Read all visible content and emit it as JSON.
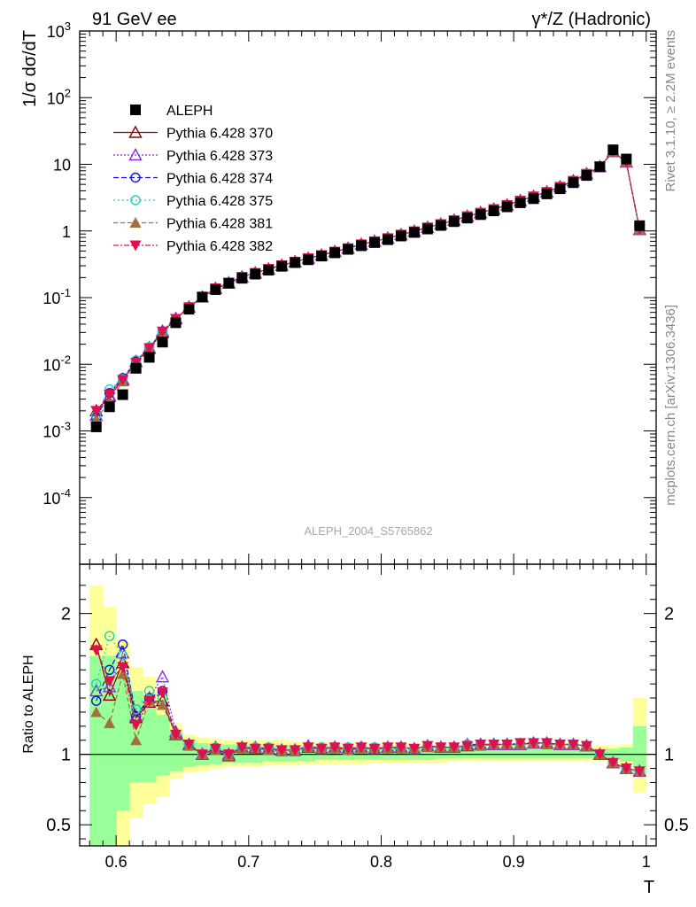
{
  "header": {
    "left_title": "91 GeV ee",
    "right_title": "γ*/Z (Hadronic)"
  },
  "side_text": {
    "rivet": "Rivet 3.1.10, ≥ 2.2M events",
    "mcplots": "mcplots.cern.ch [arXiv:1306.3436]"
  },
  "watermark": "ALEPH_2004_S5765862",
  "colors": {
    "data": "#000000",
    "p370": "#8b0000",
    "p373": "#8a2be2",
    "p374": "#1515d0",
    "p375": "#20d0c0",
    "p381": "#a07040",
    "p382": "#e0104c",
    "band_green": "#99ff99",
    "band_yellow": "#ffff99"
  },
  "chart_data": [
    {
      "type": "scatter",
      "panel": "main",
      "ylabel": "1/σ  dσ/dT",
      "yscale": "log",
      "xlim": [
        0.5725,
        1.0075
      ],
      "ylim": [
        1e-05,
        1000
      ],
      "x_ticks": [
        "0.6",
        "0.7",
        "0.8",
        "0.9",
        "1"
      ],
      "y_tick_labels": [
        "10^-4",
        "10^-3",
        "10^-2",
        "10^-1",
        "1",
        "10",
        "10^2",
        "10^3"
      ],
      "legend_position": "top-left",
      "x": [
        0.585,
        0.595,
        0.605,
        0.615,
        0.625,
        0.635,
        0.645,
        0.655,
        0.665,
        0.675,
        0.685,
        0.695,
        0.705,
        0.715,
        0.725,
        0.735,
        0.745,
        0.755,
        0.765,
        0.775,
        0.785,
        0.795,
        0.805,
        0.815,
        0.825,
        0.835,
        0.845,
        0.855,
        0.865,
        0.875,
        0.885,
        0.895,
        0.905,
        0.915,
        0.925,
        0.935,
        0.945,
        0.955,
        0.965,
        0.975,
        0.985,
        0.995
      ],
      "series": [
        {
          "name": "ALEPH",
          "marker": "square",
          "values": [
            0.00115,
            0.0023,
            0.0035,
            0.0087,
            0.0127,
            0.0215,
            0.042,
            0.067,
            0.102,
            0.132,
            0.165,
            0.195,
            0.225,
            0.258,
            0.295,
            0.335,
            0.37,
            0.42,
            0.47,
            0.53,
            0.6,
            0.67,
            0.74,
            0.84,
            0.95,
            1.07,
            1.21,
            1.38,
            1.56,
            1.76,
            2.0,
            2.3,
            2.65,
            3.05,
            3.6,
            4.3,
            5.3,
            6.8,
            9.2,
            16.5,
            12.0,
            1.2
          ]
        },
        {
          "name": "Pythia 6.428 370",
          "marker": "triangle-open",
          "values": [
            0.002,
            0.0033,
            0.0058,
            0.011,
            0.0173,
            0.03,
            0.048,
            0.072,
            0.102,
            0.138,
            0.165,
            0.205,
            0.235,
            0.27,
            0.305,
            0.345,
            0.39,
            0.435,
            0.49,
            0.55,
            0.63,
            0.7,
            0.78,
            0.88,
            0.99,
            1.13,
            1.27,
            1.45,
            1.66,
            1.88,
            2.13,
            2.45,
            2.85,
            3.3,
            3.85,
            4.6,
            5.65,
            7.2,
            9.2,
            15.5,
            10.8,
            1.05
          ]
        },
        {
          "name": "Pythia 6.428 373",
          "marker": "triangle-open",
          "values": [
            0.0017,
            0.0034,
            0.006,
            0.011,
            0.0178,
            0.0315,
            0.049,
            0.072,
            0.102,
            0.137,
            0.167,
            0.205,
            0.235,
            0.268,
            0.305,
            0.345,
            0.39,
            0.435,
            0.49,
            0.55,
            0.63,
            0.7,
            0.78,
            0.88,
            0.99,
            1.13,
            1.27,
            1.45,
            1.66,
            1.88,
            2.13,
            2.45,
            2.85,
            3.3,
            3.85,
            4.6,
            5.65,
            7.2,
            9.2,
            15.5,
            10.8,
            1.05
          ]
        },
        {
          "name": "Pythia 6.428 374",
          "marker": "circle-open",
          "values": [
            0.0016,
            0.0037,
            0.0062,
            0.011,
            0.0178,
            0.031,
            0.048,
            0.072,
            0.102,
            0.137,
            0.165,
            0.205,
            0.235,
            0.268,
            0.305,
            0.345,
            0.39,
            0.435,
            0.49,
            0.55,
            0.63,
            0.7,
            0.78,
            0.88,
            0.99,
            1.13,
            1.27,
            1.45,
            1.66,
            1.88,
            2.13,
            2.45,
            2.85,
            3.3,
            3.85,
            4.6,
            5.65,
            7.2,
            9.2,
            15.5,
            10.8,
            1.05
          ]
        },
        {
          "name": "Pythia 6.428 375",
          "marker": "circle-open",
          "values": [
            0.0017,
            0.0042,
            0.006,
            0.0115,
            0.0182,
            0.03,
            0.048,
            0.072,
            0.102,
            0.138,
            0.165,
            0.205,
            0.235,
            0.268,
            0.305,
            0.345,
            0.39,
            0.435,
            0.49,
            0.55,
            0.63,
            0.7,
            0.78,
            0.88,
            0.99,
            1.13,
            1.27,
            1.45,
            1.66,
            1.88,
            2.13,
            2.45,
            2.85,
            3.3,
            3.85,
            4.6,
            5.65,
            7.2,
            9.2,
            15.5,
            10.8,
            1.05
          ]
        },
        {
          "name": "Pythia 6.428 381",
          "marker": "triangle-filled",
          "values": [
            0.0015,
            0.0028,
            0.0055,
            0.0095,
            0.0175,
            0.029,
            0.048,
            0.071,
            0.101,
            0.136,
            0.165,
            0.205,
            0.235,
            0.268,
            0.305,
            0.345,
            0.39,
            0.435,
            0.49,
            0.55,
            0.63,
            0.7,
            0.78,
            0.88,
            0.99,
            1.13,
            1.27,
            1.45,
            1.66,
            1.88,
            2.13,
            2.45,
            2.85,
            3.3,
            3.85,
            4.6,
            5.65,
            7.2,
            9.2,
            15.5,
            10.8,
            1.05
          ]
        },
        {
          "name": "Pythia 6.428 382",
          "marker": "triangle-down-filled",
          "values": [
            0.002,
            0.0035,
            0.0058,
            0.0105,
            0.0175,
            0.031,
            0.048,
            0.072,
            0.102,
            0.138,
            0.166,
            0.205,
            0.235,
            0.27,
            0.305,
            0.345,
            0.39,
            0.435,
            0.49,
            0.55,
            0.63,
            0.7,
            0.78,
            0.88,
            0.99,
            1.13,
            1.27,
            1.45,
            1.66,
            1.88,
            2.13,
            2.45,
            2.85,
            3.3,
            3.85,
            4.6,
            5.65,
            7.2,
            9.2,
            15.5,
            10.8,
            1.05
          ]
        }
      ]
    },
    {
      "type": "line",
      "panel": "ratio",
      "ylabel": "Ratio to ALEPH",
      "xlabel": "T",
      "xlim": [
        0.5725,
        1.0075
      ],
      "ylim": [
        0.35,
        2.35
      ],
      "y_ticks": [
        "0.5",
        "1",
        "2"
      ],
      "x": [
        0.585,
        0.595,
        0.605,
        0.615,
        0.625,
        0.635,
        0.645,
        0.655,
        0.665,
        0.675,
        0.685,
        0.695,
        0.705,
        0.715,
        0.725,
        0.735,
        0.745,
        0.755,
        0.765,
        0.775,
        0.785,
        0.795,
        0.805,
        0.815,
        0.825,
        0.835,
        0.845,
        0.855,
        0.865,
        0.875,
        0.885,
        0.895,
        0.905,
        0.915,
        0.925,
        0.935,
        0.945,
        0.955,
        0.965,
        0.975,
        0.985,
        0.995
      ],
      "band_green": [
        [
          0.3,
          1.7
        ],
        [
          0.3,
          1.7
        ],
        [
          0.6,
          1.55
        ],
        [
          0.8,
          1.45
        ],
        [
          0.8,
          1.35
        ],
        [
          0.85,
          1.28
        ],
        [
          0.88,
          1.17
        ],
        [
          0.91,
          1.1
        ],
        [
          0.92,
          1.08
        ],
        [
          0.93,
          1.07
        ],
        [
          0.94,
          1.07
        ],
        [
          0.94,
          1.07
        ],
        [
          0.94,
          1.07
        ],
        [
          0.95,
          1.07
        ],
        [
          0.95,
          1.06
        ],
        [
          0.95,
          1.06
        ],
        [
          0.95,
          1.06
        ],
        [
          0.96,
          1.06
        ],
        [
          0.96,
          1.05
        ],
        [
          0.96,
          1.05
        ],
        [
          0.96,
          1.05
        ],
        [
          0.96,
          1.05
        ],
        [
          0.96,
          1.05
        ],
        [
          0.96,
          1.05
        ],
        [
          0.96,
          1.05
        ],
        [
          0.96,
          1.05
        ],
        [
          0.97,
          1.05
        ],
        [
          0.97,
          1.05
        ],
        [
          0.97,
          1.05
        ],
        [
          0.97,
          1.05
        ],
        [
          0.97,
          1.05
        ],
        [
          0.97,
          1.05
        ],
        [
          0.97,
          1.05
        ],
        [
          0.97,
          1.04
        ],
        [
          0.97,
          1.04
        ],
        [
          0.97,
          1.04
        ],
        [
          0.97,
          1.04
        ],
        [
          0.97,
          1.04
        ],
        [
          0.97,
          1.04
        ],
        [
          0.96,
          1.04
        ],
        [
          0.95,
          1.05
        ],
        [
          0.85,
          1.2
        ]
      ],
      "band_yellow": [
        [
          0.3,
          2.2
        ],
        [
          0.3,
          2.05
        ],
        [
          0.3,
          1.8
        ],
        [
          0.55,
          1.62
        ],
        [
          0.65,
          1.55
        ],
        [
          0.7,
          1.45
        ],
        [
          0.83,
          1.22
        ],
        [
          0.87,
          1.14
        ],
        [
          0.88,
          1.12
        ],
        [
          0.9,
          1.11
        ],
        [
          0.91,
          1.1
        ],
        [
          0.91,
          1.1
        ],
        [
          0.91,
          1.1
        ],
        [
          0.92,
          1.1
        ],
        [
          0.92,
          1.1
        ],
        [
          0.92,
          1.09
        ],
        [
          0.93,
          1.09
        ],
        [
          0.93,
          1.09
        ],
        [
          0.93,
          1.08
        ],
        [
          0.93,
          1.08
        ],
        [
          0.93,
          1.08
        ],
        [
          0.94,
          1.08
        ],
        [
          0.94,
          1.08
        ],
        [
          0.94,
          1.08
        ],
        [
          0.94,
          1.07
        ],
        [
          0.94,
          1.07
        ],
        [
          0.94,
          1.07
        ],
        [
          0.95,
          1.07
        ],
        [
          0.95,
          1.07
        ],
        [
          0.95,
          1.07
        ],
        [
          0.95,
          1.07
        ],
        [
          0.95,
          1.07
        ],
        [
          0.95,
          1.07
        ],
        [
          0.95,
          1.07
        ],
        [
          0.95,
          1.07
        ],
        [
          0.95,
          1.07
        ],
        [
          0.95,
          1.06
        ],
        [
          0.95,
          1.06
        ],
        [
          0.95,
          1.06
        ],
        [
          0.94,
          1.06
        ],
        [
          0.93,
          1.07
        ],
        [
          0.73,
          1.4
        ]
      ],
      "series": [
        {
          "name": "Pythia 6.428 370",
          "values": [
            1.78,
            1.42,
            1.65,
            1.26,
            1.37,
            1.38,
            1.14,
            1.07,
            1.0,
            1.04,
            0.99,
            1.05,
            1.04,
            1.04,
            1.03,
            1.03,
            1.05,
            1.04,
            1.05,
            1.04,
            1.05,
            1.04,
            1.05,
            1.05,
            1.04,
            1.06,
            1.05,
            1.05,
            1.06,
            1.07,
            1.07,
            1.07,
            1.07,
            1.08,
            1.08,
            1.07,
            1.07,
            1.06,
            1.0,
            0.94,
            0.9,
            0.88
          ]
        },
        {
          "name": "Pythia 6.428 373",
          "values": [
            1.45,
            1.48,
            1.72,
            1.27,
            1.4,
            1.55,
            1.16,
            1.07,
            1.0,
            1.05,
            1.0,
            1.05,
            1.05,
            1.04,
            1.03,
            1.03,
            1.06,
            1.04,
            1.05,
            1.04,
            1.05,
            1.04,
            1.05,
            1.05,
            1.04,
            1.06,
            1.05,
            1.05,
            1.07,
            1.07,
            1.07,
            1.07,
            1.07,
            1.08,
            1.08,
            1.07,
            1.07,
            1.06,
            1.0,
            0.94,
            0.9,
            0.88
          ]
        },
        {
          "name": "Pythia 6.428 374",
          "values": [
            1.38,
            1.6,
            1.78,
            1.27,
            1.4,
            1.45,
            1.14,
            1.07,
            1.0,
            1.04,
            1.0,
            1.05,
            1.04,
            1.04,
            1.03,
            1.03,
            1.05,
            1.04,
            1.05,
            1.03,
            1.05,
            1.04,
            1.05,
            1.05,
            1.04,
            1.06,
            1.05,
            1.05,
            1.07,
            1.07,
            1.07,
            1.07,
            1.07,
            1.08,
            1.08,
            1.07,
            1.07,
            1.06,
            1.0,
            0.94,
            0.9,
            0.88
          ]
        },
        {
          "name": "Pythia 6.428 375",
          "values": [
            1.5,
            1.84,
            1.7,
            1.32,
            1.45,
            1.4,
            1.14,
            1.07,
            1.0,
            1.05,
            1.0,
            1.05,
            1.05,
            1.05,
            1.03,
            1.03,
            1.05,
            1.05,
            1.05,
            1.05,
            1.05,
            1.05,
            1.05,
            1.05,
            1.04,
            1.06,
            1.05,
            1.05,
            1.07,
            1.07,
            1.07,
            1.07,
            1.07,
            1.08,
            1.08,
            1.07,
            1.07,
            1.06,
            1.0,
            0.94,
            0.9,
            0.88
          ]
        },
        {
          "name": "Pythia 6.428 381",
          "values": [
            1.3,
            1.22,
            1.57,
            1.1,
            1.38,
            1.35,
            1.14,
            1.06,
            1.0,
            1.03,
            0.99,
            1.04,
            1.04,
            1.03,
            1.02,
            1.02,
            1.05,
            1.04,
            1.04,
            1.03,
            1.04,
            1.04,
            1.04,
            1.04,
            1.04,
            1.05,
            1.05,
            1.05,
            1.06,
            1.06,
            1.07,
            1.07,
            1.07,
            1.08,
            1.07,
            1.07,
            1.07,
            1.06,
            1.0,
            0.94,
            0.9,
            0.88
          ]
        },
        {
          "name": "Pythia 6.428 382",
          "values": [
            1.74,
            1.52,
            1.62,
            1.21,
            1.38,
            1.44,
            1.14,
            1.07,
            1.0,
            1.04,
            1.0,
            1.05,
            1.04,
            1.04,
            1.03,
            1.03,
            1.05,
            1.04,
            1.05,
            1.04,
            1.05,
            1.04,
            1.05,
            1.05,
            1.04,
            1.06,
            1.05,
            1.05,
            1.06,
            1.07,
            1.07,
            1.07,
            1.08,
            1.08,
            1.08,
            1.07,
            1.07,
            1.06,
            1.0,
            0.94,
            0.9,
            0.88
          ]
        }
      ]
    }
  ]
}
